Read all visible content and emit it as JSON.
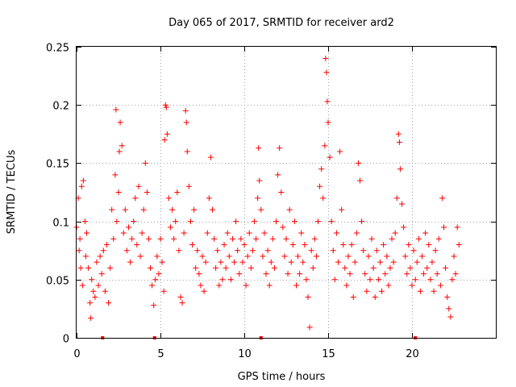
{
  "chart_data": {
    "type": "scatter",
    "title": "Day 065 of 2017, SRMTID for receiver ard2",
    "xlabel": "GPS time / hours",
    "ylabel": "SRMTID / TECUs",
    "xlim": [
      0,
      25
    ],
    "ylim": [
      0,
      0.25
    ],
    "x_ticks": [
      0,
      5,
      10,
      15,
      20
    ],
    "x_tick_labels": [
      "0",
      "5",
      "10",
      "15",
      "20"
    ],
    "y_ticks": [
      0,
      0.05,
      0.1,
      0.15,
      0.2,
      0.25
    ],
    "y_tick_labels": [
      "0",
      "0.05",
      "0.1",
      "0.15",
      "0.2",
      "0.25"
    ],
    "grid": true,
    "marker": "plus",
    "color": "#ff0000",
    "series": [
      {
        "name": "SRMTID",
        "points": [
          [
            0.0,
            0.095
          ],
          [
            0.1,
            0.12
          ],
          [
            0.15,
            0.075
          ],
          [
            0.2,
            0.085
          ],
          [
            0.25,
            0.06
          ],
          [
            0.3,
            0.13
          ],
          [
            0.35,
            0.045
          ],
          [
            0.4,
            0.135
          ],
          [
            0.5,
            0.1
          ],
          [
            0.55,
            0.07
          ],
          [
            0.6,
            0.09
          ],
          [
            0.7,
            0.06
          ],
          [
            0.8,
            0.03
          ],
          [
            0.85,
            0.017
          ],
          [
            0.9,
            0.05
          ],
          [
            1.0,
            0.04
          ],
          [
            1.1,
            0.035
          ],
          [
            1.2,
            0.065
          ],
          [
            1.3,
            0.045
          ],
          [
            1.4,
            0.07
          ],
          [
            1.5,
            0.055
          ],
          [
            1.6,
            0.075
          ],
          [
            1.7,
            0.04
          ],
          [
            1.8,
            0.08
          ],
          [
            1.9,
            0.03
          ],
          [
            2.0,
            0.06
          ],
          [
            2.1,
            0.11
          ],
          [
            2.2,
            0.085
          ],
          [
            2.3,
            0.14
          ],
          [
            2.35,
            0.196
          ],
          [
            2.4,
            0.1
          ],
          [
            2.5,
            0.125
          ],
          [
            2.55,
            0.16
          ],
          [
            2.6,
            0.185
          ],
          [
            2.7,
            0.165
          ],
          [
            2.8,
            0.09
          ],
          [
            2.9,
            0.11
          ],
          [
            3.0,
            0.075
          ],
          [
            3.1,
            0.095
          ],
          [
            3.2,
            0.065
          ],
          [
            3.3,
            0.085
          ],
          [
            3.4,
            0.1
          ],
          [
            3.5,
            0.12
          ],
          [
            3.6,
            0.08
          ],
          [
            3.7,
            0.13
          ],
          [
            3.8,
            0.07
          ],
          [
            3.9,
            0.09
          ],
          [
            4.0,
            0.11
          ],
          [
            4.1,
            0.15
          ],
          [
            4.2,
            0.125
          ],
          [
            4.3,
            0.085
          ],
          [
            4.4,
            0.06
          ],
          [
            4.5,
            0.045
          ],
          [
            4.6,
            0.028
          ],
          [
            4.7,
            0.05
          ],
          [
            4.8,
            0.07
          ],
          [
            4.9,
            0.055
          ],
          [
            5.0,
            0.085
          ],
          [
            5.1,
            0.065
          ],
          [
            5.2,
            0.04
          ],
          [
            5.25,
            0.17
          ],
          [
            5.3,
            0.2
          ],
          [
            5.35,
            0.198
          ],
          [
            5.4,
            0.175
          ],
          [
            5.5,
            0.12
          ],
          [
            5.6,
            0.095
          ],
          [
            5.7,
            0.11
          ],
          [
            5.8,
            0.085
          ],
          [
            5.9,
            0.1
          ],
          [
            6.0,
            0.125
          ],
          [
            6.1,
            0.075
          ],
          [
            6.2,
            0.035
          ],
          [
            6.3,
            0.03
          ],
          [
            6.4,
            0.09
          ],
          [
            6.5,
            0.195
          ],
          [
            6.55,
            0.185
          ],
          [
            6.6,
            0.16
          ],
          [
            6.7,
            0.13
          ],
          [
            6.8,
            0.1
          ],
          [
            6.9,
            0.08
          ],
          [
            7.0,
            0.11
          ],
          [
            7.1,
            0.06
          ],
          [
            7.2,
            0.075
          ],
          [
            7.3,
            0.055
          ],
          [
            7.4,
            0.045
          ],
          [
            7.5,
            0.07
          ],
          [
            7.6,
            0.04
          ],
          [
            7.7,
            0.065
          ],
          [
            7.8,
            0.09
          ],
          [
            7.9,
            0.12
          ],
          [
            8.0,
            0.155
          ],
          [
            8.1,
            0.11
          ],
          [
            8.2,
            0.085
          ],
          [
            8.3,
            0.06
          ],
          [
            8.4,
            0.075
          ],
          [
            8.5,
            0.045
          ],
          [
            8.6,
            0.065
          ],
          [
            8.7,
            0.05
          ],
          [
            8.8,
            0.08
          ],
          [
            8.9,
            0.06
          ],
          [
            9.0,
            0.09
          ],
          [
            9.1,
            0.07
          ],
          [
            9.2,
            0.05
          ],
          [
            9.3,
            0.085
          ],
          [
            9.4,
            0.065
          ],
          [
            9.5,
            0.1
          ],
          [
            9.6,
            0.075
          ],
          [
            9.7,
            0.055
          ],
          [
            9.8,
            0.085
          ],
          [
            9.9,
            0.065
          ],
          [
            10.0,
            0.08
          ],
          [
            10.1,
            0.045
          ],
          [
            10.2,
            0.07
          ],
          [
            10.3,
            0.09
          ],
          [
            10.4,
            0.06
          ],
          [
            10.5,
            0.075
          ],
          [
            10.6,
            0.1
          ],
          [
            10.7,
            0.085
          ],
          [
            10.8,
            0.12
          ],
          [
            10.85,
            0.163
          ],
          [
            10.9,
            0.135
          ],
          [
            11.0,
            0.11
          ],
          [
            11.1,
            0.07
          ],
          [
            11.2,
            0.09
          ],
          [
            11.3,
            0.055
          ],
          [
            11.4,
            0.075
          ],
          [
            11.5,
            0.045
          ],
          [
            11.6,
            0.065
          ],
          [
            11.7,
            0.085
          ],
          [
            11.8,
            0.06
          ],
          [
            11.9,
            0.1
          ],
          [
            12.0,
            0.14
          ],
          [
            12.1,
            0.163
          ],
          [
            12.2,
            0.125
          ],
          [
            12.3,
            0.095
          ],
          [
            12.4,
            0.07
          ],
          [
            12.5,
            0.085
          ],
          [
            12.6,
            0.055
          ],
          [
            12.7,
            0.11
          ],
          [
            12.8,
            0.065
          ],
          [
            12.9,
            0.08
          ],
          [
            13.0,
            0.1
          ],
          [
            13.1,
            0.045
          ],
          [
            13.2,
            0.07
          ],
          [
            13.3,
            0.055
          ],
          [
            13.4,
            0.09
          ],
          [
            13.5,
            0.065
          ],
          [
            13.6,
            0.08
          ],
          [
            13.7,
            0.05
          ],
          [
            13.8,
            0.035
          ],
          [
            13.9,
            0.009
          ],
          [
            14.0,
            0.075
          ],
          [
            14.1,
            0.06
          ],
          [
            14.2,
            0.085
          ],
          [
            14.3,
            0.07
          ],
          [
            14.4,
            0.1
          ],
          [
            14.5,
            0.13
          ],
          [
            14.6,
            0.145
          ],
          [
            14.7,
            0.12
          ],
          [
            14.8,
            0.165
          ],
          [
            14.85,
            0.24
          ],
          [
            14.9,
            0.228
          ],
          [
            14.95,
            0.203
          ],
          [
            15.0,
            0.185
          ],
          [
            15.1,
            0.155
          ],
          [
            15.2,
            0.1
          ],
          [
            15.3,
            0.075
          ],
          [
            15.4,
            0.05
          ],
          [
            15.5,
            0.09
          ],
          [
            15.6,
            0.065
          ],
          [
            15.7,
            0.16
          ],
          [
            15.8,
            0.11
          ],
          [
            15.9,
            0.08
          ],
          [
            16.0,
            0.06
          ],
          [
            16.1,
            0.045
          ],
          [
            16.2,
            0.07
          ],
          [
            16.3,
            0.055
          ],
          [
            16.4,
            0.08
          ],
          [
            16.5,
            0.035
          ],
          [
            16.6,
            0.065
          ],
          [
            16.7,
            0.09
          ],
          [
            16.8,
            0.15
          ],
          [
            16.9,
            0.135
          ],
          [
            17.0,
            0.1
          ],
          [
            17.1,
            0.075
          ],
          [
            17.2,
            0.055
          ],
          [
            17.3,
            0.04
          ],
          [
            17.4,
            0.07
          ],
          [
            17.5,
            0.05
          ],
          [
            17.6,
            0.085
          ],
          [
            17.7,
            0.06
          ],
          [
            17.8,
            0.035
          ],
          [
            17.9,
            0.075
          ],
          [
            18.0,
            0.05
          ],
          [
            18.1,
            0.065
          ],
          [
            18.2,
            0.04
          ],
          [
            18.3,
            0.08
          ],
          [
            18.4,
            0.055
          ],
          [
            18.5,
            0.07
          ],
          [
            18.6,
            0.045
          ],
          [
            18.7,
            0.06
          ],
          [
            18.8,
            0.085
          ],
          [
            18.9,
            0.065
          ],
          [
            19.0,
            0.09
          ],
          [
            19.1,
            0.12
          ],
          [
            19.2,
            0.175
          ],
          [
            19.25,
            0.168
          ],
          [
            19.3,
            0.145
          ],
          [
            19.4,
            0.115
          ],
          [
            19.5,
            0.095
          ],
          [
            19.6,
            0.07
          ],
          [
            19.7,
            0.055
          ],
          [
            19.8,
            0.08
          ],
          [
            19.9,
            0.06
          ],
          [
            20.0,
            0.045
          ],
          [
            20.1,
            0.075
          ],
          [
            20.2,
            0.05
          ],
          [
            20.3,
            0.065
          ],
          [
            20.4,
            0.085
          ],
          [
            20.5,
            0.04
          ],
          [
            20.6,
            0.07
          ],
          [
            20.7,
            0.055
          ],
          [
            20.8,
            0.09
          ],
          [
            20.9,
            0.06
          ],
          [
            21.0,
            0.08
          ],
          [
            21.1,
            0.05
          ],
          [
            21.2,
            0.065
          ],
          [
            21.3,
            0.04
          ],
          [
            21.4,
            0.075
          ],
          [
            21.5,
            0.055
          ],
          [
            21.6,
            0.085
          ],
          [
            21.7,
            0.045
          ],
          [
            21.8,
            0.12
          ],
          [
            21.9,
            0.095
          ],
          [
            22.0,
            0.06
          ],
          [
            22.1,
            0.035
          ],
          [
            22.2,
            0.025
          ],
          [
            22.3,
            0.018
          ],
          [
            22.4,
            0.05
          ],
          [
            22.5,
            0.07
          ],
          [
            22.6,
            0.055
          ],
          [
            22.7,
            0.095
          ],
          [
            22.8,
            0.08
          ]
        ]
      }
    ],
    "zero_markers": [
      1.55,
      4.65,
      11.0,
      20.2
    ]
  }
}
